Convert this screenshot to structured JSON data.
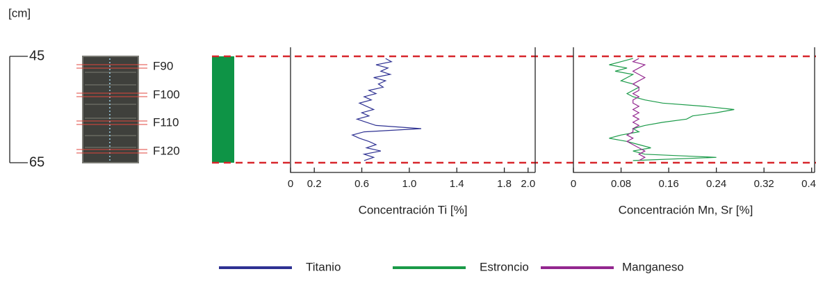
{
  "chart_data": {
    "type": "depth-profile",
    "y_label": "[cm]",
    "ylim": [
      45,
      65
    ],
    "yticks": [
      45,
      65
    ],
    "core_labels": [
      "F90",
      "F100",
      "F110",
      "F120"
    ],
    "depth": [
      45.4,
      46.0,
      46.6,
      47.2,
      47.8,
      48.4,
      49.0,
      49.6,
      50.2,
      50.8,
      51.4,
      52.0,
      52.6,
      53.2,
      53.8,
      54.4,
      55.0,
      55.6,
      56.2,
      56.8,
      57.4,
      58.0,
      58.6,
      59.2,
      59.8,
      60.4,
      61.0,
      61.6,
      62.2,
      62.8,
      63.4,
      64.0,
      64.6
    ],
    "panels": [
      {
        "xlabel": "Concentración Ti [%]",
        "xlim": [
          0,
          2.06
        ],
        "xticks": [
          0,
          0.2,
          0.6,
          {
            "value": 1,
            "label": "1.0"
          },
          1.4,
          1.8,
          {
            "value": 2,
            "label": "2.0"
          }
        ],
        "series": [
          {
            "name": "Titanio",
            "color": "#2e3192",
            "values": [
              0.8,
              0.85,
              0.72,
              0.82,
              0.76,
              0.84,
              0.7,
              0.8,
              0.74,
              0.78,
              0.66,
              0.72,
              0.62,
              0.68,
              0.58,
              0.64,
              0.7,
              0.6,
              0.66,
              0.56,
              0.64,
              0.72,
              1.1,
              0.62,
              0.52,
              0.58,
              0.66,
              0.72,
              0.64,
              0.76,
              0.62,
              0.7,
              0.62
            ]
          }
        ]
      },
      {
        "xlabel": "Concentración Mn, Sr [%]",
        "xlim": [
          0,
          0.405
        ],
        "xticks": [
          0,
          0.08,
          0.16,
          0.24,
          0.32,
          {
            "value": 0.4,
            "label": "0.40"
          }
        ],
        "series": [
          {
            "name": "Estroncio",
            "color": "#1a9a48",
            "values": [
              0.1,
              0.08,
              0.06,
              0.09,
              0.07,
              0.1,
              0.09,
              0.08,
              0.1,
              0.11,
              0.1,
              0.09,
              0.1,
              0.12,
              0.15,
              0.22,
              0.27,
              0.24,
              0.2,
              0.19,
              0.15,
              0.12,
              0.1,
              0.11,
              0.08,
              0.06,
              0.09,
              0.11,
              0.13,
              0.1,
              0.12,
              0.24,
              0.1
            ]
          },
          {
            "name": "Manganeso",
            "color": "#93278f",
            "values": [
              0.11,
              0.1,
              0.12,
              0.11,
              0.1,
              0.11,
              0.12,
              0.11,
              0.1,
              0.11,
              0.11,
              0.1,
              0.11,
              0.1,
              0.1,
              0.11,
              0.1,
              0.11,
              0.1,
              0.11,
              0.1,
              0.11,
              0.1,
              0.1,
              0.09,
              0.1,
              0.09,
              0.1,
              0.11,
              0.12,
              0.11,
              0.12,
              0.11
            ]
          }
        ]
      }
    ]
  }
}
